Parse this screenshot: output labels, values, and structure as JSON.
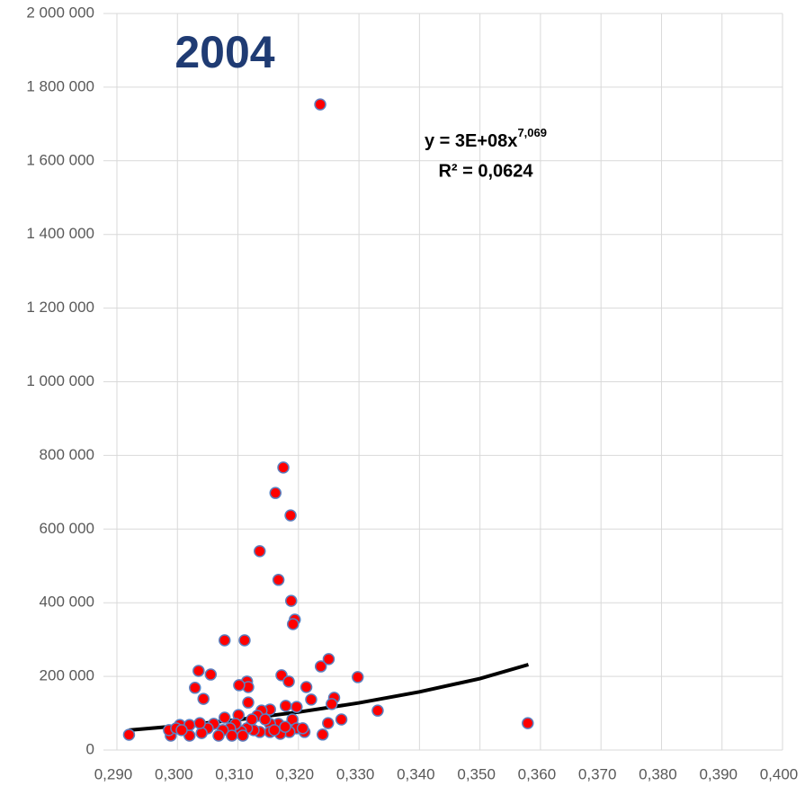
{
  "chart_data": {
    "type": "scatter",
    "title": "2004",
    "equation": {
      "text": "y = 3E+08x",
      "exponent": "7,069"
    },
    "r_squared": "R² = 0,0624",
    "xlim": [
      0.29,
      0.4
    ],
    "ylim": [
      0,
      2000000
    ],
    "xticks": [
      {
        "value": 0.29,
        "label": "0,290"
      },
      {
        "value": 0.3,
        "label": "0,300"
      },
      {
        "value": 0.31,
        "label": "0,310"
      },
      {
        "value": 0.32,
        "label": "0,320"
      },
      {
        "value": 0.33,
        "label": "0,330"
      },
      {
        "value": 0.34,
        "label": "0,340"
      },
      {
        "value": 0.35,
        "label": "0,350"
      },
      {
        "value": 0.36,
        "label": "0,360"
      },
      {
        "value": 0.37,
        "label": "0,370"
      },
      {
        "value": 0.38,
        "label": "0,380"
      },
      {
        "value": 0.39,
        "label": "0,390"
      },
      {
        "value": 0.4,
        "label": "0,400"
      }
    ],
    "yticks": [
      0,
      {
        "value": 200000,
        "label": "200 000"
      },
      {
        "value": 400000,
        "label": "400 000"
      },
      {
        "value": 600000,
        "label": "600 000"
      },
      {
        "value": 800000,
        "label": "800 000"
      },
      {
        "value": 1000000,
        "label": "1 000 000"
      },
      {
        "value": 1200000,
        "label": "1 200 000"
      },
      {
        "value": 1400000,
        "label": "1 400 000"
      },
      {
        "value": 1600000,
        "label": "1 600 000"
      },
      {
        "value": 1800000,
        "label": "1 800 000"
      },
      {
        "value": 2000000,
        "label": "2 000 000"
      }
    ],
    "grid": true,
    "series": [
      {
        "color": "#ff0000",
        "edge_color": "#5b7fbf",
        "x": [
          0.292,
          0.2989,
          0.2986,
          0.3004,
          0.302,
          0.3236,
          0.3175,
          0.3162,
          0.3187,
          0.3136,
          0.3167,
          0.3188,
          0.3194,
          0.3191,
          0.3078,
          0.3111,
          0.3035,
          0.3055,
          0.3029,
          0.3043,
          0.3115,
          0.3117,
          0.3102,
          0.3172,
          0.3184,
          0.3213,
          0.3221,
          0.3237,
          0.325,
          0.3298,
          0.3259,
          0.3255,
          0.3331,
          0.3579,
          0.3271,
          0.3249,
          0.324,
          0.321,
          0.3179,
          0.3197,
          0.3153,
          0.3139,
          0.3117,
          0.3132,
          0.3101,
          0.3078,
          0.3167,
          0.3153,
          0.319,
          0.3197,
          0.3185,
          0.317,
          0.3153,
          0.3136,
          0.3126,
          0.3115,
          0.3105,
          0.3096,
          0.3087,
          0.3075,
          0.3068,
          0.309,
          0.3108,
          0.306,
          0.305,
          0.304,
          0.302,
          0.3037,
          0.2998,
          0.3007,
          0.3123,
          0.3145,
          0.316,
          0.3178,
          0.3207
        ],
        "values": [
          41500,
          39000,
          54000,
          68000,
          39000,
          1753000,
          767000,
          698000,
          637000,
          540000,
          462000,
          405000,
          354000,
          342000,
          298000,
          298000,
          215000,
          205000,
          169000,
          139000,
          186000,
          171000,
          176000,
          203000,
          186000,
          171000,
          137000,
          227000,
          247000,
          198000,
          142000,
          125000,
          107000,
          73000,
          83000,
          73000,
          42000,
          49000,
          120000,
          117000,
          110000,
          107000,
          129000,
          93000,
          95000,
          88000,
          71000,
          71000,
          83000,
          59000,
          49000,
          44000,
          49000,
          49000,
          54000,
          59000,
          51000,
          71000,
          59000,
          54000,
          39000,
          39000,
          39000,
          71000,
          59000,
          46000,
          68000,
          73000,
          59000,
          54000,
          83000,
          83000,
          54000,
          63000,
          59000
        ]
      }
    ],
    "trendline": {
      "color": "#000000",
      "x": [
        0.292,
        0.3,
        0.31,
        0.32,
        0.33,
        0.34,
        0.35,
        0.358
      ],
      "values": [
        54000,
        65400,
        82400,
        103000,
        128000,
        158000,
        194000,
        232000
      ]
    }
  }
}
